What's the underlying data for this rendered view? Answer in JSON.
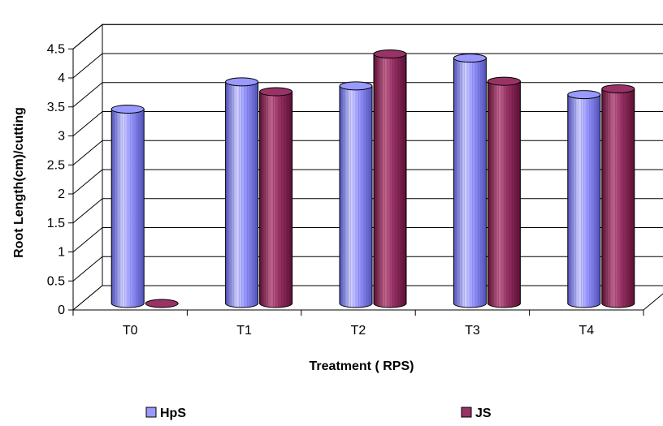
{
  "chart_data": {
    "type": "bar",
    "categories": [
      "T0",
      "T1",
      "T2",
      "T3",
      "T4"
    ],
    "series": [
      {
        "name": "HpS",
        "values": [
          3.35,
          3.82,
          3.75,
          4.23,
          3.6
        ],
        "color": "#9999FF",
        "dark": "#5050B8",
        "light": "#D2D2FF"
      },
      {
        "name": "JS",
        "values": [
          0.0,
          3.65,
          4.3,
          3.83,
          3.7
        ],
        "color": "#993366",
        "dark": "#5A1033",
        "light": "#C26690"
      }
    ],
    "yticks": [
      "0",
      "0.5",
      "1",
      "1.5",
      "2",
      "2.5",
      "3",
      "3.5",
      "4",
      "4.5"
    ],
    "ylim": [
      0,
      4.5
    ],
    "xlabel": "Treatment ( RPS)",
    "ylabel": "Root Length(cm)/cutting",
    "grid": true,
    "legend": "bottom"
  }
}
